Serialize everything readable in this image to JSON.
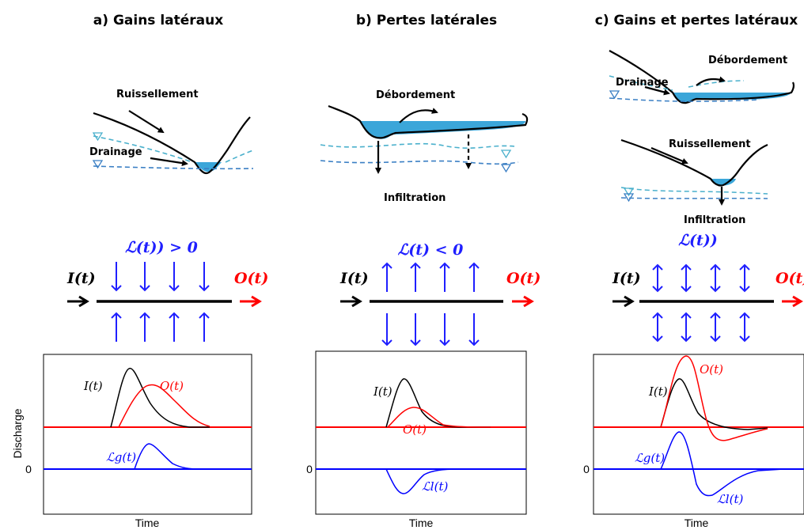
{
  "panels": [
    {
      "title": "a) Gains latéraux",
      "sketch_labels": [
        "Ruissellement",
        "Drainage"
      ],
      "flux_label": "ℒ(t)) > 0",
      "input_label": "I(t)",
      "output_label": "O(t)",
      "graph_labels": {
        "input": "I(t)",
        "output": "O(t)",
        "lateral": "ℒg(t)"
      }
    },
    {
      "title": "b) Pertes latérales",
      "sketch_labels": [
        "Débordement",
        "Infiltration"
      ],
      "flux_label": "ℒ(t) < 0",
      "input_label": "I(t)",
      "output_label": "O(t)",
      "graph_labels": {
        "input": "I(t)",
        "output": "O(t)",
        "lateral": "ℒl(t)"
      }
    },
    {
      "title": "c) Gains et pertes latéraux",
      "sketch_labels": [
        "Débordement",
        "Drainage",
        "Ruissellement",
        "Infiltration"
      ],
      "flux_label": "ℒ(t))",
      "input_label": "I(t)",
      "output_label": "O(t)",
      "graph_labels": {
        "input": "I(t)",
        "output": "O(t)",
        "lateral": "ℒg(t)",
        "lateral2": "ℒl(t)"
      }
    }
  ],
  "axes": {
    "y_label": "Discharge",
    "x_label": "Time",
    "zero_label": "0"
  },
  "colors": {
    "input": "#000000",
    "output": "#ff0000",
    "lateral": "#0000ff",
    "water": "#3ba6d9",
    "watertable": "#3a7fc4"
  }
}
